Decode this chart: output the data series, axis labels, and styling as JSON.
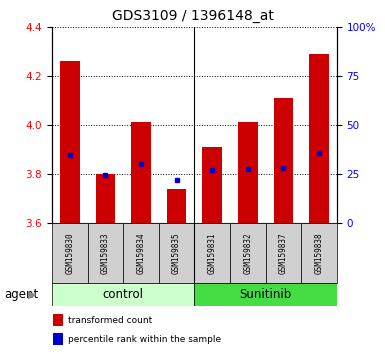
{
  "title": "GDS3109 / 1396148_at",
  "samples": [
    "GSM159830",
    "GSM159833",
    "GSM159834",
    "GSM159835",
    "GSM159831",
    "GSM159832",
    "GSM159837",
    "GSM159838"
  ],
  "groups": [
    "control",
    "control",
    "control",
    "control",
    "Sunitinib",
    "Sunitinib",
    "Sunitinib",
    "Sunitinib"
  ],
  "bar_tops": [
    4.26,
    3.8,
    4.01,
    3.74,
    3.91,
    4.01,
    4.11,
    4.29
  ],
  "bar_bottom": 3.6,
  "percentile_values": [
    3.875,
    3.795,
    3.84,
    3.775,
    3.815,
    3.82,
    3.825,
    3.885
  ],
  "ylim": [
    3.6,
    4.4
  ],
  "yticks_left": [
    3.6,
    3.8,
    4.0,
    4.2,
    4.4
  ],
  "yticks_right_pos": [
    3.6,
    3.8,
    4.0,
    4.2,
    4.4
  ],
  "right_axis_labels": [
    "0",
    "25",
    "50",
    "75",
    "100%"
  ],
  "bar_color": "#cc0000",
  "percentile_color": "#0000cc",
  "control_bg": "#ccffcc",
  "sunitinib_bg": "#44dd44",
  "sample_box_bg": "#d0d0d0",
  "group_label_control": "control",
  "group_label_sunitinib": "Sunitinib",
  "agent_label": "agent",
  "legend_bar_label": "transformed count",
  "legend_pct_label": "percentile rank within the sample",
  "title_fontsize": 10,
  "tick_fontsize": 7.5,
  "label_fontsize": 8.5
}
